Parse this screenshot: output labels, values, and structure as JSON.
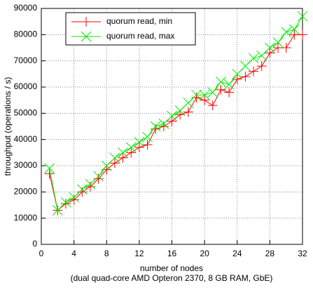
{
  "chart_data": {
    "type": "line",
    "xlabel": [
      "number of nodes",
      "(dual quad-core AMD Opteron 2370, 8 GB RAM, GbE)"
    ],
    "ylabel": "throughput (operations / s)",
    "x": [
      1,
      2,
      3,
      4,
      5,
      6,
      7,
      8,
      9,
      10,
      11,
      12,
      13,
      14,
      15,
      16,
      17,
      18,
      19,
      20,
      21,
      22,
      23,
      24,
      25,
      26,
      27,
      28,
      29,
      30,
      31,
      32
    ],
    "series": [
      {
        "name": "quorum read, min",
        "color": "#ff0000",
        "marker": "plus",
        "values": [
          27000,
          13000,
          15500,
          17000,
          20000,
          22000,
          25000,
          28500,
          31000,
          33000,
          35000,
          37000,
          38000,
          44000,
          45000,
          47000,
          49500,
          50500,
          56000,
          55000,
          53000,
          59000,
          58000,
          63000,
          64000,
          66000,
          68000,
          73000,
          75000,
          75000,
          80000,
          80000
        ]
      },
      {
        "name": "quorum read, max",
        "color": "#00ee00",
        "marker": "cross",
        "values": [
          29000,
          13000,
          16000,
          18000,
          21000,
          23000,
          26000,
          30000,
          33000,
          35000,
          37000,
          39000,
          41000,
          45000,
          46000,
          49000,
          51000,
          54000,
          57000,
          57000,
          58000,
          62000,
          61000,
          65000,
          68000,
          71000,
          72000,
          75000,
          77000,
          81000,
          82000,
          87000
        ]
      }
    ],
    "xlim": [
      0,
      32
    ],
    "xticks": [
      0,
      4,
      8,
      12,
      16,
      20,
      24,
      28,
      32
    ],
    "ylim": [
      0,
      90000
    ],
    "yticks": [
      0,
      10000,
      20000,
      30000,
      40000,
      50000,
      60000,
      70000,
      80000,
      90000
    ],
    "grid": true,
    "legend": "top-left"
  }
}
